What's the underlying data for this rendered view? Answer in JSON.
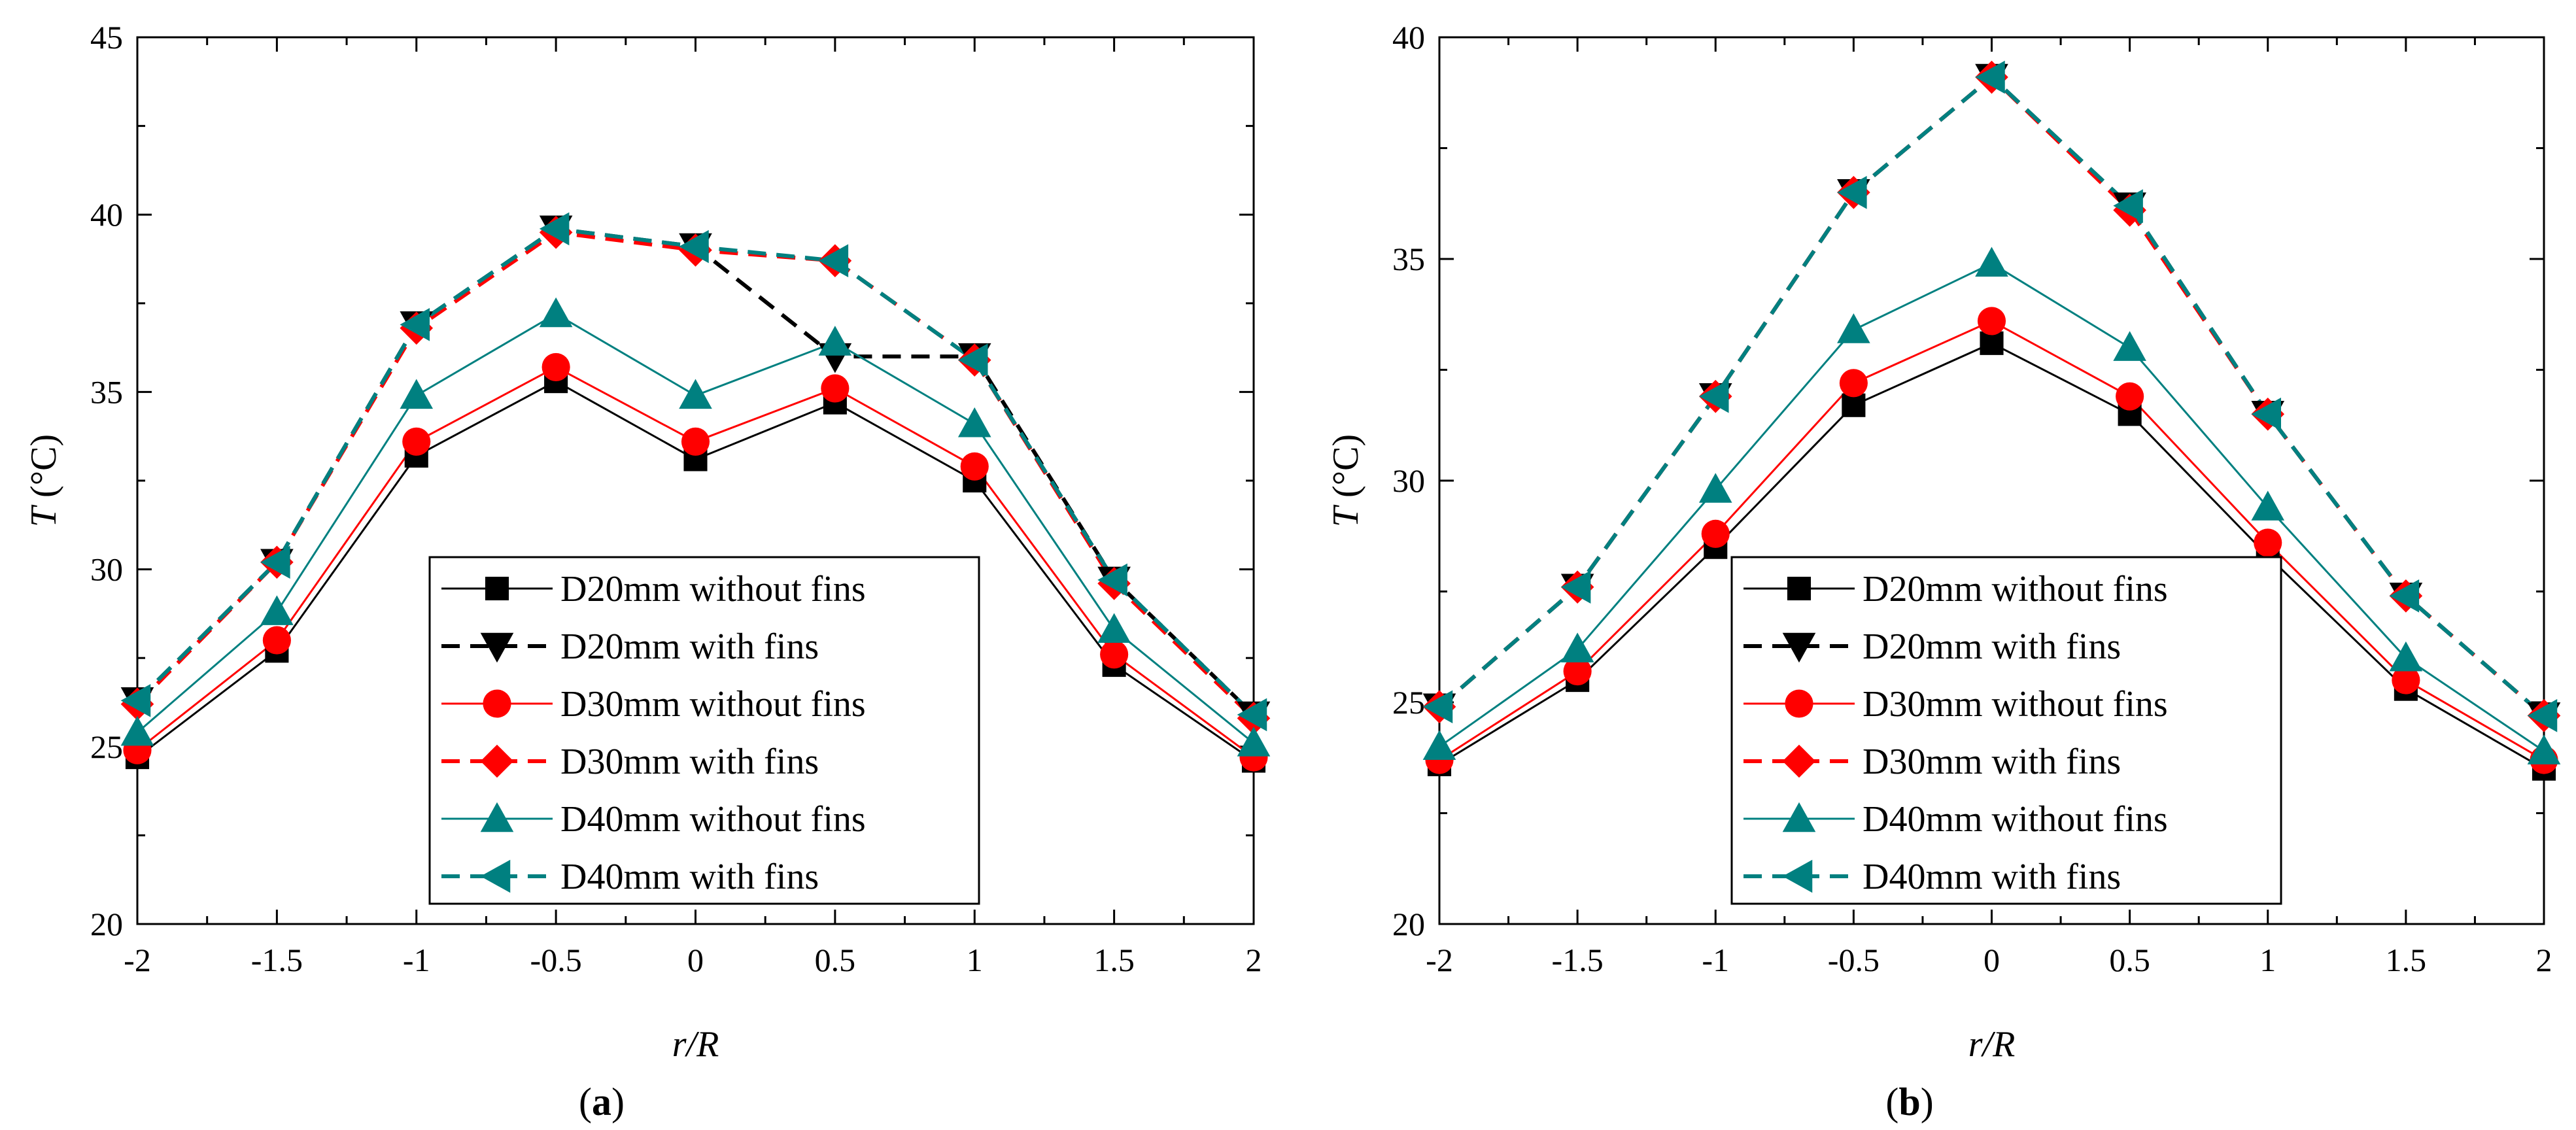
{
  "chart_data": [
    {
      "type": "line",
      "panel_label": "a",
      "xlabel": "r/R",
      "ylabel": "T (°C)",
      "ylabel_italic": "T",
      "ylabel_unit": " (°C)",
      "xlim": [
        -2,
        2
      ],
      "ylim": [
        20,
        45
      ],
      "xticks": [
        -2,
        -1.5,
        -1,
        -0.5,
        0,
        0.5,
        1,
        1.5,
        2
      ],
      "xtick_labels": [
        "-2",
        "-1.5",
        "-1",
        "-0.5",
        "0",
        "0.5",
        "1",
        "1.5",
        "2"
      ],
      "yticks": [
        20,
        25,
        30,
        35,
        40,
        45
      ],
      "ytick_labels": [
        "20",
        "25",
        "30",
        "35",
        "40",
        "45"
      ],
      "legend_position": "lower-center",
      "x": [
        -2,
        -1.5,
        -1,
        -0.5,
        0,
        0.5,
        1,
        1.5,
        2
      ],
      "series": [
        {
          "name": "D20mm without fins",
          "color": "#000000",
          "dash": "solid",
          "marker": "square",
          "values": [
            24.7,
            27.7,
            33.2,
            35.3,
            33.1,
            34.7,
            32.5,
            27.3,
            24.6
          ]
        },
        {
          "name": "D20mm with fins",
          "color": "#000000",
          "dash": "dashed",
          "marker": "triangle-down",
          "values": [
            26.3,
            30.2,
            36.9,
            39.6,
            39.1,
            36.0,
            36.0,
            29.7,
            25.9
          ]
        },
        {
          "name": "D30mm without fins",
          "color": "#ff0000",
          "dash": "solid",
          "marker": "circle",
          "values": [
            24.9,
            28.0,
            33.6,
            35.7,
            33.6,
            35.1,
            32.9,
            27.6,
            24.7
          ]
        },
        {
          "name": "D30mm with fins",
          "color": "#ff0000",
          "dash": "dashed",
          "marker": "diamond",
          "values": [
            26.2,
            30.2,
            36.8,
            39.5,
            39.0,
            38.7,
            35.9,
            29.6,
            25.8
          ]
        },
        {
          "name": "D40mm without fins",
          "color": "#008080",
          "dash": "solid",
          "marker": "triangle-up",
          "values": [
            25.4,
            28.8,
            34.9,
            37.2,
            34.9,
            36.4,
            34.1,
            28.3,
            25.1
          ]
        },
        {
          "name": "D40mm with fins",
          "color": "#008080",
          "dash": "dashed",
          "marker": "triangle-left",
          "values": [
            26.3,
            30.2,
            36.9,
            39.6,
            39.1,
            38.7,
            35.9,
            29.7,
            25.9
          ]
        }
      ]
    },
    {
      "type": "line",
      "panel_label": "b",
      "xlabel": "r/R",
      "ylabel": "T (°C)",
      "ylabel_italic": "T",
      "ylabel_unit": " (°C)",
      "xlim": [
        -2,
        2
      ],
      "ylim": [
        20,
        40
      ],
      "xticks": [
        -2,
        -1.5,
        -1,
        -0.5,
        0,
        0.5,
        1,
        1.5,
        2
      ],
      "xtick_labels": [
        "-2",
        "-1.5",
        "-1",
        "-0.5",
        "0",
        "0.5",
        "1",
        "1.5",
        "2"
      ],
      "yticks": [
        20,
        25,
        30,
        35,
        40
      ],
      "ytick_labels": [
        "20",
        "25",
        "30",
        "35",
        "40"
      ],
      "legend_position": "lower-center",
      "x": [
        -2,
        -1.5,
        -1,
        -0.5,
        0,
        0.5,
        1,
        1.5,
        2
      ],
      "series": [
        {
          "name": "D20mm without fins",
          "color": "#000000",
          "dash": "solid",
          "marker": "square",
          "values": [
            23.6,
            25.5,
            28.5,
            31.7,
            33.1,
            31.5,
            28.3,
            25.3,
            23.5
          ]
        },
        {
          "name": "D20mm with fins",
          "color": "#000000",
          "dash": "dashed",
          "marker": "triangle-down",
          "values": [
            24.9,
            27.6,
            31.9,
            36.5,
            39.1,
            36.2,
            31.5,
            27.4,
            24.7
          ]
        },
        {
          "name": "D30mm without fins",
          "color": "#ff0000",
          "dash": "solid",
          "marker": "circle",
          "values": [
            23.7,
            25.7,
            28.8,
            32.2,
            33.6,
            31.9,
            28.6,
            25.5,
            23.7
          ]
        },
        {
          "name": "D30mm with fins",
          "color": "#ff0000",
          "dash": "dashed",
          "marker": "diamond",
          "values": [
            24.9,
            27.6,
            31.9,
            36.5,
            39.1,
            36.1,
            31.5,
            27.4,
            24.7
          ]
        },
        {
          "name": "D40mm without fins",
          "color": "#008080",
          "dash": "solid",
          "marker": "triangle-up",
          "values": [
            24.0,
            26.2,
            29.8,
            33.4,
            34.9,
            33.0,
            29.4,
            26.0,
            23.9
          ]
        },
        {
          "name": "D40mm with fins",
          "color": "#008080",
          "dash": "dashed",
          "marker": "triangle-left",
          "values": [
            24.9,
            27.6,
            31.9,
            36.5,
            39.1,
            36.2,
            31.5,
            27.4,
            24.7
          ]
        }
      ]
    }
  ]
}
